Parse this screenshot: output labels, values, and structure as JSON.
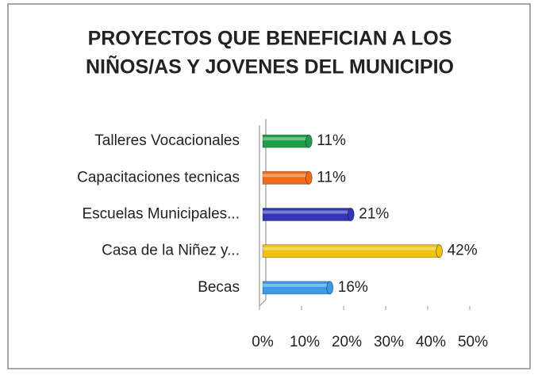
{
  "chart_data": {
    "type": "bar",
    "orientation": "horizontal",
    "title": [
      "PROYECTOS QUE BENEFICIAN A LOS",
      "NIÑOS/AS Y JOVENES DEL MUNICIPIO"
    ],
    "categories": [
      "Talleres Vocacionales",
      "Capacitaciones tecnicas",
      "Escuelas Municipales...",
      "Casa de la Niñez y...",
      "Becas"
    ],
    "values": [
      11,
      11,
      21,
      42,
      16
    ],
    "value_labels": [
      "11%",
      "11%",
      "21%",
      "42%",
      "16%"
    ],
    "colors": [
      "#1f9e4a",
      "#f26a16",
      "#3535b8",
      "#f2c20c",
      "#3a9ae8"
    ],
    "xlim": [
      0,
      50
    ],
    "xticks": [
      {
        "value": 0,
        "label": "0%"
      },
      {
        "value": 10,
        "label": "10%"
      },
      {
        "value": 20,
        "label": "20%"
      },
      {
        "value": 30,
        "label": "30%"
      },
      {
        "value": 40,
        "label": "40%"
      },
      {
        "value": 50,
        "label": "50%"
      }
    ]
  }
}
